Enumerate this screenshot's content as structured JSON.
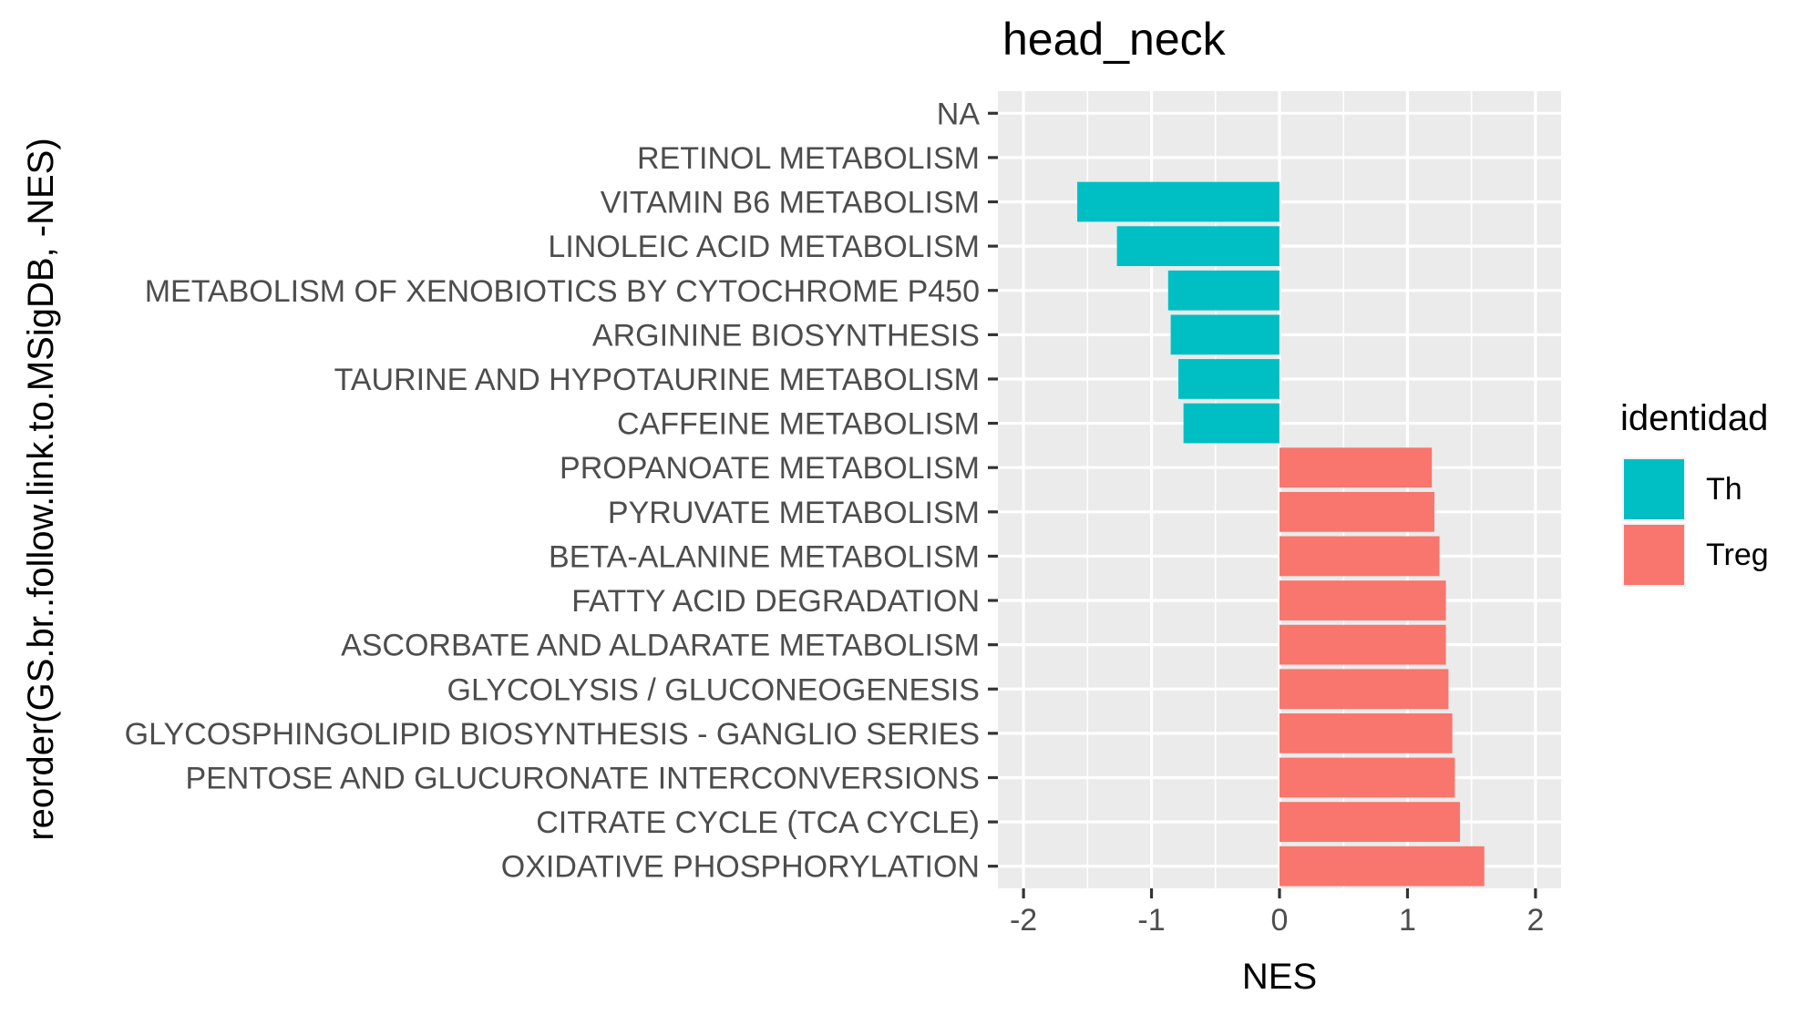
{
  "chart_data": {
    "type": "bar",
    "orientation": "horizontal",
    "title": "head_neck",
    "xlabel": "NES",
    "ylabel": "reorder(GS.br..follow.link.to.MSigDB, -NES)",
    "xlim": [
      -2.2,
      2.2
    ],
    "xticks": [
      -2,
      -1,
      0,
      1,
      2
    ],
    "x_tick_labels": [
      "-2",
      "-1",
      "0",
      "1",
      "2"
    ],
    "grid": true,
    "legend": {
      "title": "identidad",
      "position": "right",
      "entries": [
        {
          "name": "Th",
          "color": "#00BFC4"
        },
        {
          "name": "Treg",
          "color": "#F8766D"
        }
      ]
    },
    "categories": [
      "NA",
      "RETINOL METABOLISM",
      "VITAMIN B6 METABOLISM",
      "LINOLEIC ACID METABOLISM",
      "METABOLISM OF XENOBIOTICS BY CYTOCHROME P450",
      "ARGININE BIOSYNTHESIS",
      "TAURINE AND HYPOTAURINE METABOLISM",
      "CAFFEINE METABOLISM",
      "PROPANOATE METABOLISM",
      "PYRUVATE METABOLISM",
      "BETA-ALANINE METABOLISM",
      "FATTY ACID DEGRADATION",
      "ASCORBATE AND ALDARATE METABOLISM",
      "GLYCOLYSIS / GLUCONEOGENESIS",
      "GLYCOSPHINGOLIPID BIOSYNTHESIS - GANGLIO SERIES",
      "PENTOSE AND GLUCURONATE INTERCONVERSIONS",
      "CITRATE CYCLE (TCA CYCLE)",
      "OXIDATIVE PHOSPHORYLATION"
    ],
    "values": [
      null,
      null,
      -1.58,
      -1.27,
      -0.87,
      -0.85,
      -0.79,
      -0.75,
      1.19,
      1.21,
      1.25,
      1.3,
      1.3,
      1.32,
      1.35,
      1.37,
      1.41,
      1.6
    ],
    "groups": [
      null,
      null,
      "Th",
      "Th",
      "Th",
      "Th",
      "Th",
      "Th",
      "Treg",
      "Treg",
      "Treg",
      "Treg",
      "Treg",
      "Treg",
      "Treg",
      "Treg",
      "Treg",
      "Treg"
    ]
  }
}
